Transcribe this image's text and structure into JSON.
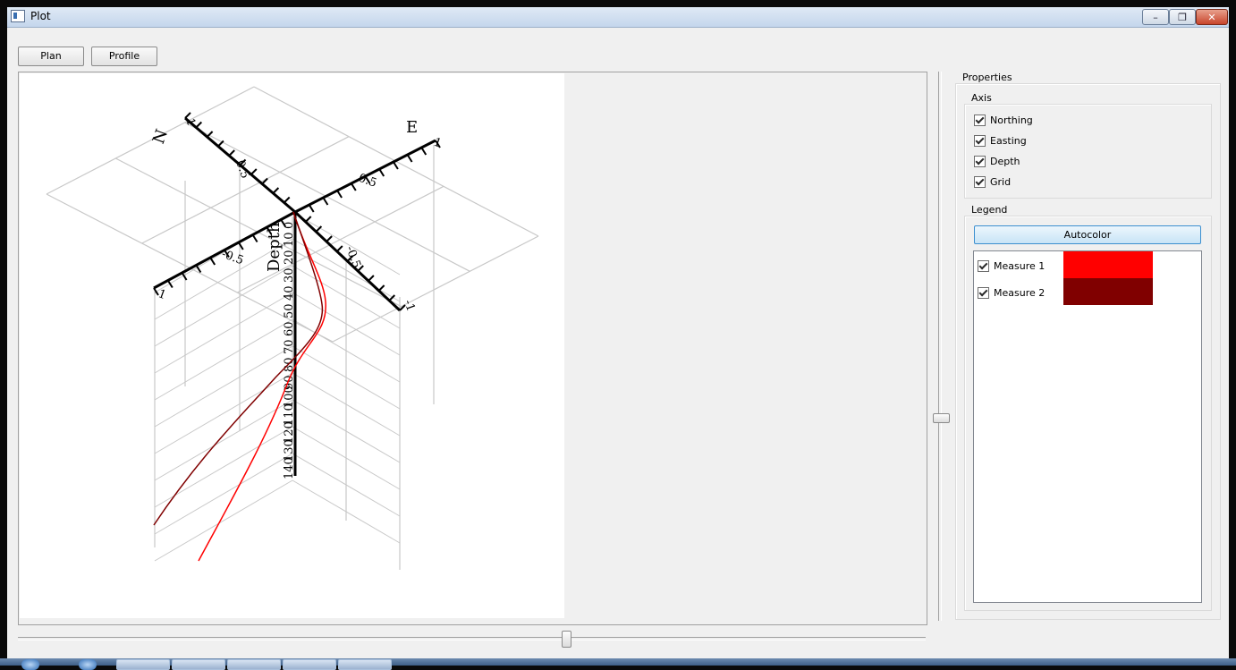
{
  "window": {
    "title": "Plot"
  },
  "titlebar_buttons": {
    "minimize": "–",
    "maximize": "❐",
    "close": "✕"
  },
  "toolbar": {
    "plan_label": "Plan",
    "profile_label": "Profile"
  },
  "plot": {
    "axis_labels": {
      "north": "N",
      "east": "E",
      "depth": "Depth"
    },
    "north_ticks": [
      "1",
      "0.5"
    ],
    "east_ticks": [
      "0.5",
      "1"
    ],
    "south_ticks": [
      "-1",
      "-0.5"
    ],
    "west_ticks": [
      "-0.5",
      "-1"
    ],
    "depth_ticks": [
      "0",
      "10",
      "20",
      "30",
      "40",
      "50",
      "60",
      "70",
      "80",
      "90",
      "100",
      "110",
      "120",
      "130",
      "140"
    ],
    "series": [
      {
        "name": "Measure 1",
        "color": "#ff0000"
      },
      {
        "name": "Measure 2",
        "color": "#800000"
      }
    ]
  },
  "properties": {
    "title": "Properties",
    "axis_group": {
      "title": "Axis",
      "items": [
        {
          "label": "Northing",
          "checked": true
        },
        {
          "label": "Easting",
          "checked": true
        },
        {
          "label": "Depth",
          "checked": true
        },
        {
          "label": "Grid",
          "checked": true
        }
      ]
    },
    "legend_group": {
      "title": "Legend",
      "autocolor_label": "Autocolor",
      "items": [
        {
          "label": "Measure 1",
          "checked": true,
          "color": "#ff0000"
        },
        {
          "label": "Measure 2",
          "checked": true,
          "color": "#800000"
        }
      ]
    }
  }
}
